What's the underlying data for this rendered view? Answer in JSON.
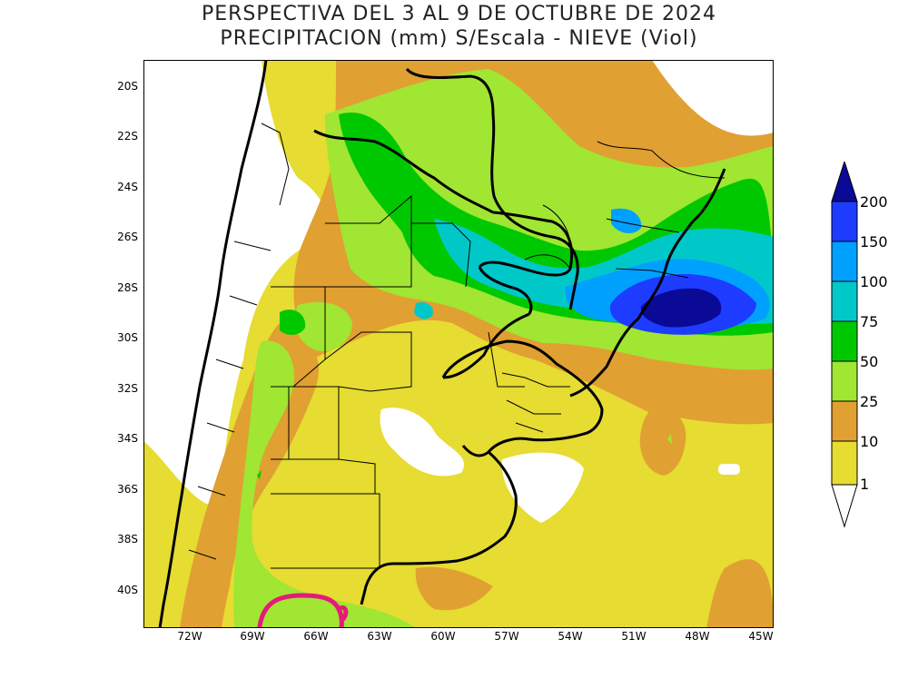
{
  "title": {
    "line1": "PERSPECTIVA DEL 3 AL 9 DE OCTUBRE DE 2024",
    "line2": "PRECIPITACION (mm) S/Escala - NIEVE (Viol)"
  },
  "axes": {
    "lat_labels": [
      "20S",
      "22S",
      "24S",
      "26S",
      "28S",
      "30S",
      "32S",
      "34S",
      "36S",
      "38S",
      "40S"
    ],
    "lon_labels": [
      "72W",
      "69W",
      "66W",
      "63W",
      "60W",
      "57W",
      "54W",
      "51W",
      "48W",
      "45W"
    ]
  },
  "legend": {
    "levels": [
      "1",
      "10",
      "25",
      "50",
      "75",
      "100",
      "150",
      "200"
    ],
    "colors": {
      "below_1": "#ffffff",
      "1_10": "#e6dc32",
      "10_25": "#e1a032",
      "25_50": "#a0e632",
      "50_75": "#00c800",
      "75_100": "#00c8c8",
      "100_150": "#00a0ff",
      "150_200": "#1e3cff",
      "above_200": "#0a0a96"
    }
  },
  "snow_line_color": "#e6197d",
  "map_region": "South America (Argentina, Uruguay, Paraguay, southern Brazil, Chile)"
}
